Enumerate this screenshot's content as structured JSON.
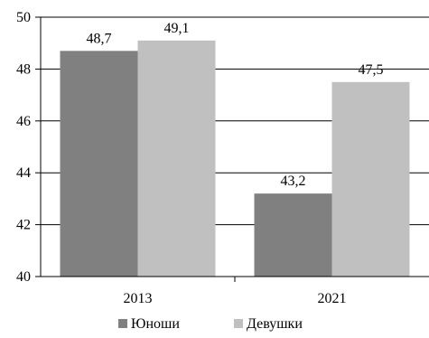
{
  "chart_data": {
    "type": "bar",
    "title": "",
    "xlabel": "",
    "ylabel": "",
    "categories": [
      "2013",
      "2021"
    ],
    "series": [
      {
        "name": "Юноши",
        "values": [
          48.7,
          43.2
        ],
        "labels": [
          "48,7",
          "43,2"
        ],
        "color": "#808080"
      },
      {
        "name": "Девушки",
        "values": [
          49.1,
          47.5
        ],
        "labels": [
          "49,1",
          "47,5"
        ],
        "color": "#c0c0c0"
      }
    ],
    "ylim": [
      40,
      50
    ],
    "yticks": [
      40,
      42,
      44,
      46,
      48,
      50
    ],
    "grid": true,
    "legend_position": "bottom"
  }
}
